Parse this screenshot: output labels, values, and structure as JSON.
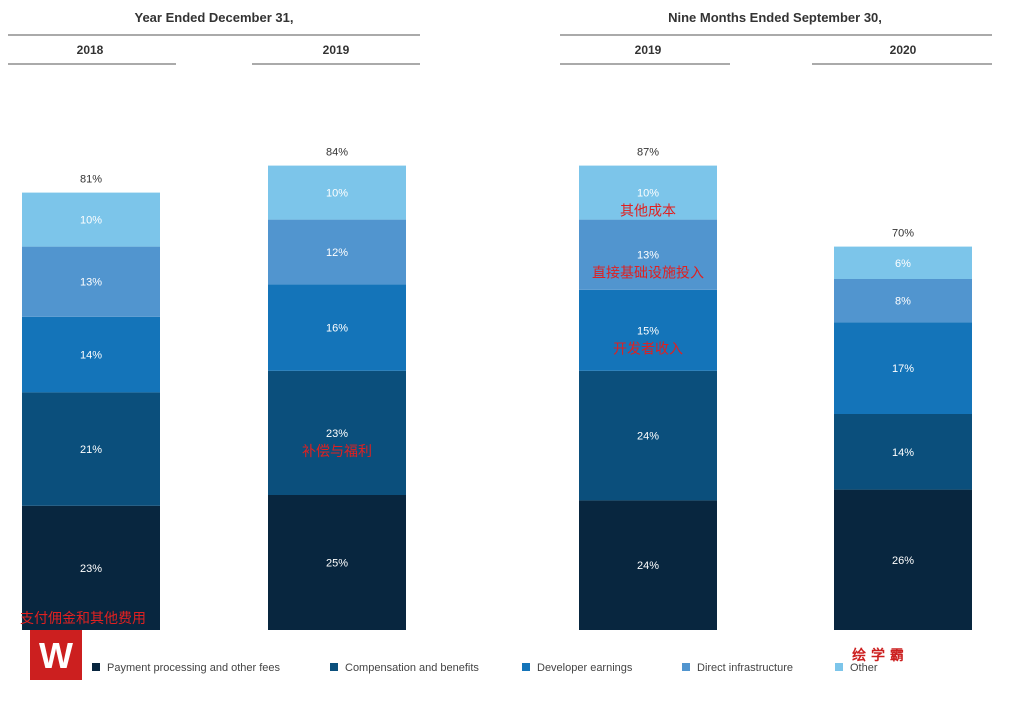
{
  "chart_data": {
    "type": "bar",
    "stacked": true,
    "groups": [
      {
        "title": "Year Ended December 31,",
        "periods": [
          "2018",
          "2019"
        ]
      },
      {
        "title": "Nine Months Ended September 30,",
        "periods": [
          "2019",
          "2020"
        ]
      }
    ],
    "categories": [
      "2018",
      "2019",
      "2019",
      "2020"
    ],
    "totals": [
      81,
      84,
      87,
      70
    ],
    "total_labels": [
      "81%",
      "84%",
      "87%",
      "70%"
    ],
    "series": [
      {
        "name": "Payment processing and other fees",
        "values": [
          23,
          25,
          24,
          26
        ],
        "color": "#08263f"
      },
      {
        "name": "Compensation and benefits",
        "values": [
          21,
          23,
          24,
          14
        ],
        "color": "#0b4f7c"
      },
      {
        "name": "Developer earnings",
        "values": [
          14,
          16,
          15,
          17
        ],
        "color": "#1474b9"
      },
      {
        "name": "Direct infrastructure",
        "values": [
          13,
          12,
          13,
          8
        ],
        "color": "#5195cf"
      },
      {
        "name": "Other",
        "values": [
          10,
          10,
          10,
          6
        ],
        "color": "#7cc5ea"
      }
    ],
    "unit": "%",
    "legend_position": "bottom"
  },
  "annotations": [
    {
      "text": "其他成本",
      "series": "Other",
      "bar": 2
    },
    {
      "text": "直接基础设施投入",
      "series": "Direct infrastructure",
      "bar": 2
    },
    {
      "text": "开发者收入",
      "series": "Developer earnings",
      "bar": 2
    },
    {
      "text": "补偿与福利",
      "series": "Compensation and benefits",
      "bar": 1
    },
    {
      "text": "支付佣金和其他费用",
      "series": "Payment processing and other fees",
      "bar": 0
    }
  ],
  "watermark": {
    "logo_letter": "W",
    "text": "绘 学 霸"
  }
}
